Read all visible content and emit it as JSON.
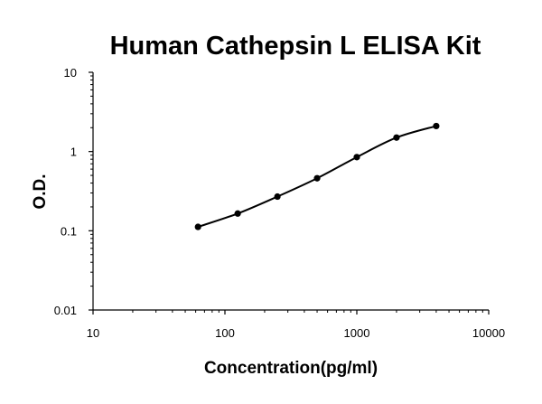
{
  "chart_data": {
    "type": "scatter",
    "title": "Human Cathepsin L ELISA Kit",
    "xlabel": "Concentration(pg/ml)",
    "ylabel": "O.D.",
    "x_scale": "log",
    "y_scale": "log",
    "xlim": [
      10,
      10000
    ],
    "ylim": [
      0.01,
      10
    ],
    "x_ticks": [
      "10",
      "100",
      "1000",
      "10000"
    ],
    "y_ticks": [
      "0.01",
      "0.1",
      "1",
      "10"
    ],
    "grid": false,
    "legend": "none",
    "colors": {
      "marker": "#000000",
      "line": "#000000",
      "axis": "#000000"
    },
    "series": [
      {
        "x": [
          62.5,
          125,
          250,
          500,
          1000,
          2000,
          4000
        ],
        "y": [
          0.112,
          0.165,
          0.27,
          0.46,
          0.85,
          1.5,
          2.1
        ]
      }
    ]
  }
}
